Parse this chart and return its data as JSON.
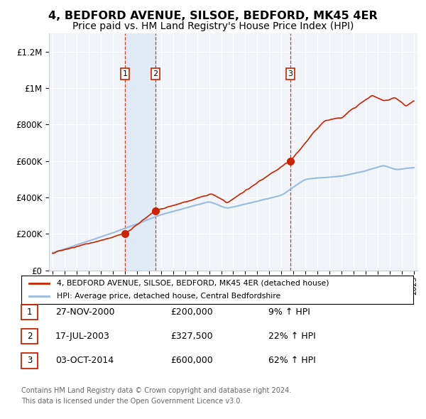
{
  "title": "4, BEDFORD AVENUE, SILSOE, BEDFORD, MK45 4ER",
  "subtitle": "Price paid vs. HM Land Registry's House Price Index (HPI)",
  "title_fontsize": 11.5,
  "subtitle_fontsize": 10,
  "background_color": "#ffffff",
  "plot_bg_color": "#f0f4f8",
  "grid_color": "#ffffff",
  "shade_color": "#dce8f5",
  "ylim": [
    0,
    1300000
  ],
  "yticks": [
    0,
    200000,
    400000,
    600000,
    800000,
    1000000,
    1200000
  ],
  "ytick_labels": [
    "£0",
    "£200K",
    "£400K",
    "£600K",
    "£800K",
    "£1M",
    "£1.2M"
  ],
  "xlim_start": 1994.7,
  "xlim_end": 2025.3,
  "sales": [
    {
      "date_str": "27-NOV-2000",
      "year": 2001.0,
      "price": 200000,
      "label": "1",
      "pct": "9%",
      "direction": "↑"
    },
    {
      "date_str": "17-JUL-2003",
      "year": 2003.54,
      "price": 327500,
      "label": "2",
      "pct": "22%",
      "direction": "↑"
    },
    {
      "date_str": "03-OCT-2014",
      "year": 2014.75,
      "price": 600000,
      "label": "3",
      "pct": "62%",
      "direction": "↑"
    }
  ],
  "property_line_color": "#cc2200",
  "hpi_line_color": "#99bbdd",
  "sale_marker_color": "#cc2200",
  "dashed_line_color": "#cc2200",
  "legend_property": "4, BEDFORD AVENUE, SILSOE, BEDFORD, MK45 4ER (detached house)",
  "legend_hpi": "HPI: Average price, detached house, Central Bedfordshire",
  "footer_line1": "Contains HM Land Registry data © Crown copyright and database right 2024.",
  "footer_line2": "This data is licensed under the Open Government Licence v3.0."
}
